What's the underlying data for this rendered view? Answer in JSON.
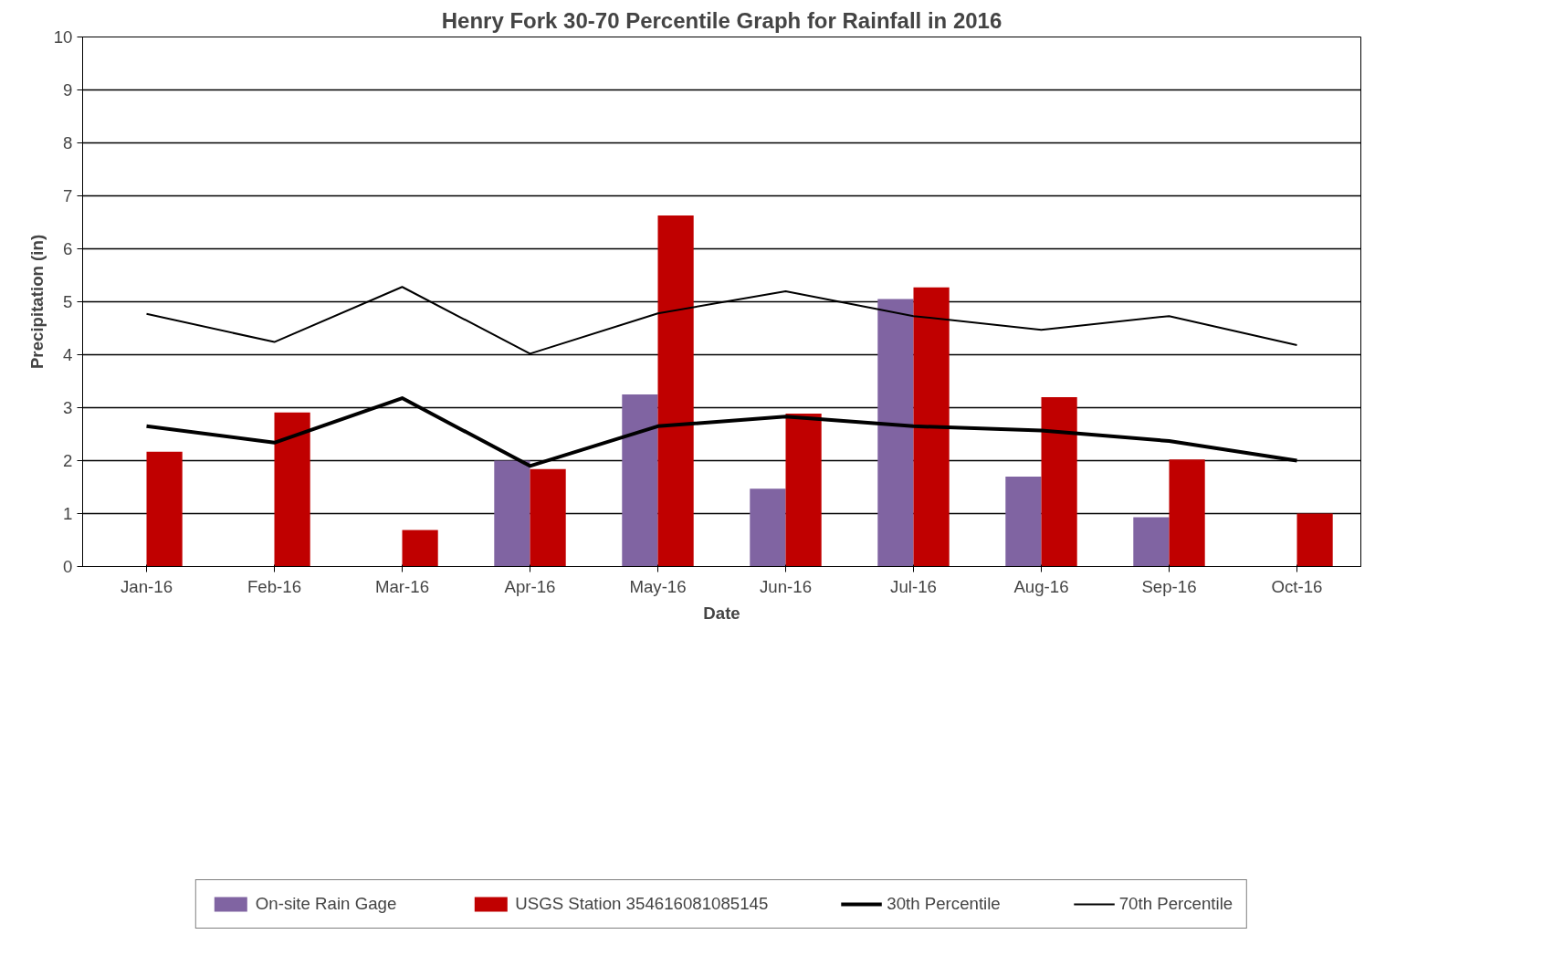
{
  "chart_data": {
    "type": "bar",
    "title": "Henry Fork 30-70 Percentile Graph for Rainfall in 2016",
    "xlabel": "Date",
    "ylabel": "Precipitation (in)",
    "categories": [
      "Jan-16",
      "Feb-16",
      "Mar-16",
      "Apr-16",
      "May-16",
      "Jun-16",
      "Jul-16",
      "Aug-16",
      "Sep-16",
      "Oct-16"
    ],
    "series": [
      {
        "name": "On-site Rain Gage",
        "color": "#8064a2",
        "values": [
          null,
          null,
          null,
          2.0,
          3.25,
          1.47,
          5.05,
          1.7,
          0.93,
          null
        ]
      },
      {
        "name": "USGS Station 354616081085145",
        "color": "#c00000",
        "values": [
          2.17,
          2.91,
          0.69,
          1.84,
          6.63,
          2.89,
          5.27,
          3.2,
          2.02,
          1.0
        ]
      },
      {
        "name": "30th Percentile",
        "type": "line",
        "color": "#000000",
        "values": [
          2.65,
          2.34,
          3.18,
          1.9,
          2.65,
          2.83,
          2.65,
          2.57,
          2.37,
          2.0
        ]
      },
      {
        "name": "70th Percentile",
        "type": "line",
        "color": "#000000",
        "values": [
          4.77,
          4.24,
          5.28,
          4.02,
          4.78,
          5.2,
          4.73,
          4.47,
          4.73,
          4.18
        ]
      }
    ],
    "ylim": [
      0,
      10
    ],
    "yticks": [
      0,
      1,
      2,
      3,
      4,
      5,
      6,
      7,
      8,
      9,
      10
    ],
    "grid": "y",
    "legend": "bottom",
    "marker": "none",
    "line_style": "solid"
  }
}
